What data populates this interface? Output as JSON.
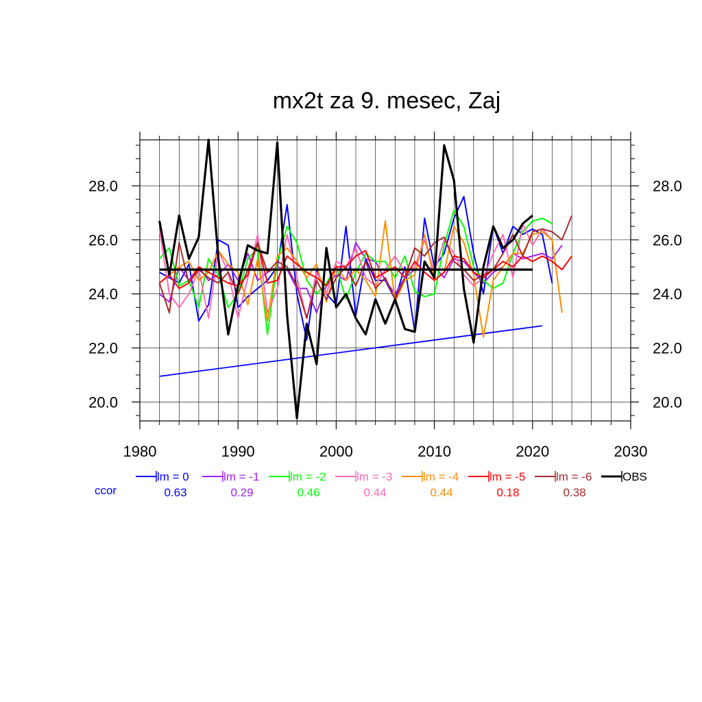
{
  "chart_data": {
    "type": "line",
    "title": "mx2t za 9. mesec, Zaj",
    "xlabel": "",
    "ylabel": "",
    "xlim": [
      1980,
      2030
    ],
    "ylim": [
      19.3,
      29.7
    ],
    "x_ticks": [
      "1980",
      "1990",
      "2000",
      "2010",
      "2020",
      "2030"
    ],
    "y_ticks": [
      "20.0",
      "22.0",
      "24.0",
      "26.0",
      "28.0"
    ],
    "grid": true,
    "legend_position": "below",
    "ccor_label": "ccor",
    "series": [
      {
        "name": "lm = 0",
        "color": "#0000ff",
        "ccor": "0.63",
        "x_start": 1982,
        "values": [
          24.8,
          24.6,
          24.4,
          25.1,
          23.0,
          23.6,
          26.0,
          25.8,
          23.5,
          23.9,
          24.2,
          24.5,
          25.0,
          27.3,
          24.0,
          22.3,
          24.9,
          24.0,
          23.6,
          26.5,
          23.2,
          25.3,
          24.5,
          24.5,
          23.8,
          25.0,
          22.6,
          26.8,
          25.0,
          25.5,
          26.8,
          27.6,
          25.5,
          24.0,
          26.5,
          25.5,
          26.5,
          26.2,
          26.4,
          26.2,
          24.4
        ]
      },
      {
        "name": "lm = -1",
        "color": "#a020f0",
        "ccor": "0.29",
        "x_start": 1982,
        "values": [
          24.0,
          23.7,
          25.0,
          24.5,
          25.0,
          24.5,
          24.7,
          25.1,
          24.5,
          25.5,
          24.5,
          24.8,
          25.0,
          24.9,
          24.2,
          24.2,
          23.3,
          24.3,
          24.7,
          24.5,
          25.9,
          25.3,
          25.2,
          24.5,
          24.0,
          24.6,
          24.9,
          24.9,
          25.0,
          24.6,
          25.3,
          25.2,
          24.8,
          24.4,
          24.8,
          25.0,
          25.5,
          25.3,
          25.4,
          25.5,
          25.3,
          25.8
        ]
      },
      {
        "name": "lm = -2",
        "color": "#00ff00",
        "ccor": "0.46",
        "x_start": 1982,
        "values": [
          25.3,
          25.7,
          24.3,
          24.5,
          23.5,
          25.3,
          24.7,
          23.5,
          24.0,
          25.3,
          25.7,
          22.5,
          25.2,
          26.5,
          25.9,
          24.5,
          24.0,
          24.4,
          25.0,
          23.8,
          24.8,
          25.5,
          25.2,
          25.2,
          24.6,
          25.4,
          24.1,
          23.9,
          24.0,
          25.8,
          27.1,
          26.5,
          25.0,
          24.5,
          24.2,
          24.4,
          25.5,
          26.3,
          26.7,
          26.8,
          26.6
        ]
      },
      {
        "name": "lm = -3",
        "color": "#ff69b4",
        "ccor": "0.44",
        "x_start": 1982,
        "values": [
          26.4,
          24.0,
          23.5,
          24.0,
          24.9,
          23.1,
          25.6,
          24.8,
          23.1,
          24.6,
          26.2,
          23.3,
          24.2,
          26.2,
          24.6,
          23.1,
          24.8,
          24.0,
          25.2,
          25.0,
          25.7,
          24.6,
          24.3,
          24.9,
          25.4,
          24.8,
          25.0,
          26.0,
          24.8,
          26.0,
          25.5,
          24.7,
          24.3,
          24.6,
          25.5,
          26.2,
          24.6,
          26.6,
          25.8,
          26.4,
          26.0
        ]
      },
      {
        "name": "lm = -4",
        "color": "#ff8c00",
        "ccor": "0.44",
        "x_start": 1982,
        "values": [
          24.4,
          24.7,
          25.0,
          25.2,
          24.5,
          24.8,
          25.6,
          25.1,
          24.8,
          23.6,
          25.3,
          23.0,
          25.4,
          25.7,
          25.2,
          24.6,
          25.1,
          23.7,
          25.0,
          24.5,
          24.9,
          24.5,
          23.9,
          26.7,
          23.7,
          24.5,
          24.7,
          26.2,
          24.5,
          24.8,
          26.5,
          25.9,
          24.7,
          22.4,
          24.5,
          25.0,
          25.5,
          25.5,
          26.2,
          26.3,
          26.0,
          23.3
        ]
      },
      {
        "name": "lm = -5",
        "color": "#ff0000",
        "ccor": "0.18",
        "x_start": 1982,
        "values": [
          24.4,
          24.7,
          24.2,
          24.4,
          25.0,
          24.8,
          24.6,
          24.4,
          24.3,
          24.7,
          25.9,
          24.4,
          24.5,
          25.4,
          25.1,
          24.8,
          24.6,
          24.3,
          25.0,
          25.0,
          25.4,
          25.6,
          24.6,
          24.8,
          25.0,
          24.6,
          25.2,
          24.8,
          24.5,
          24.8,
          25.4,
          25.3,
          24.8,
          24.6,
          24.9,
          25.2,
          25.0,
          25.4,
          25.2,
          25.4,
          25.2,
          24.9,
          25.4
        ]
      },
      {
        "name": "lm = -6",
        "color": "#a52a2a",
        "ccor": "0.38",
        "x_start": 1982,
        "values": [
          24.4,
          23.3,
          25.9,
          24.4,
          24.9,
          24.6,
          24.4,
          24.8,
          24.0,
          24.9,
          25.9,
          24.8,
          25.2,
          25.0,
          24.3,
          23.1,
          24.5,
          23.8,
          24.6,
          25.0,
          24.3,
          25.2,
          24.2,
          24.6,
          23.8,
          24.6,
          25.7,
          25.4,
          25.9,
          26.1,
          25.2,
          24.9,
          24.5,
          24.7,
          24.9,
          25.5,
          26.2,
          25.4,
          26.3,
          26.4,
          26.3,
          26.0,
          26.9
        ]
      },
      {
        "name": "OBS",
        "color": "#000000",
        "ccor": "",
        "x_start": 1982,
        "values": [
          26.7,
          24.7,
          26.9,
          25.3,
          26.1,
          29.7,
          25.3,
          22.5,
          24.3,
          25.8,
          25.6,
          25.5,
          29.6,
          23.2,
          19.4,
          22.9,
          21.4,
          25.7,
          23.5,
          24.0,
          23.1,
          22.5,
          23.8,
          22.9,
          23.8,
          22.7,
          22.6,
          25.2,
          24.6,
          29.5,
          28.2,
          24.2,
          22.2,
          25.0,
          26.5,
          25.7,
          26.0,
          26.6,
          26.9
        ]
      }
    ],
    "mean_line": {
      "x": [
        1982,
        2020
      ],
      "value": 24.9,
      "color": "#000000"
    },
    "trend_line": {
      "x": [
        1982,
        2021
      ],
      "y": [
        20.95,
        22.82
      ],
      "color": "#0000ff"
    }
  }
}
